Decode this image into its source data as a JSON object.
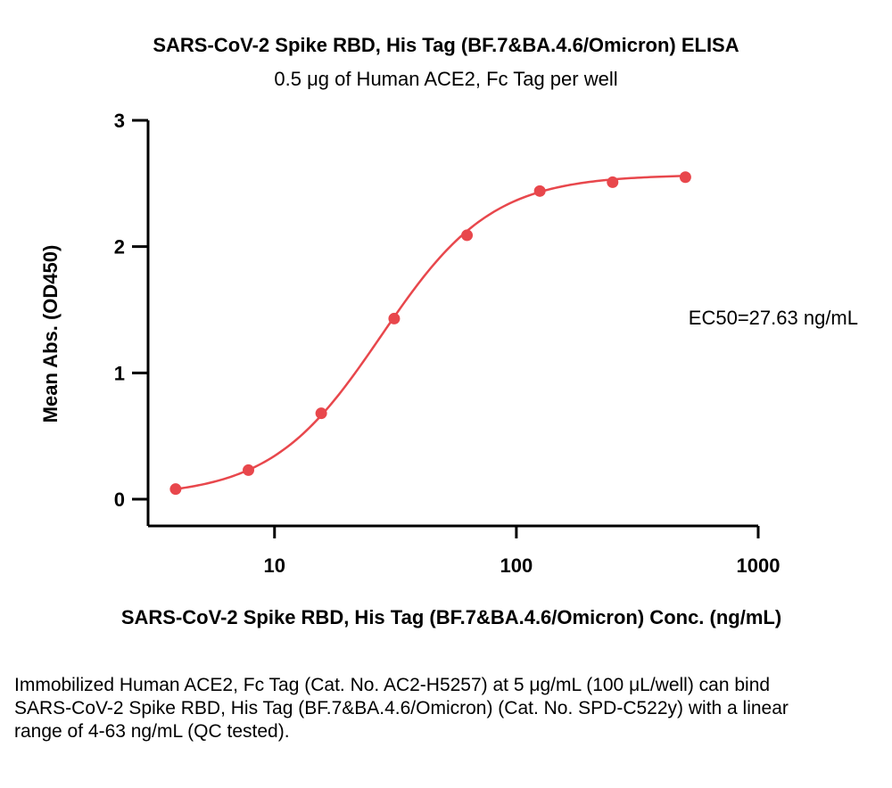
{
  "chart_data": {
    "type": "scatter",
    "title": "SARS-CoV-2 Spike RBD, His Tag (BF.7&BA.4.6/Omicron) ELISA",
    "subtitle": "0.5 μg of Human ACE2, Fc Tag per well",
    "xlabel": "SARS-CoV-2 Spike RBD, His Tag (BF.7&BA.4.6/Omicron) Conc. (ng/mL)",
    "ylabel": "Mean Abs. (OD450)",
    "xscale": "log",
    "xlim": [
      3,
      1000
    ],
    "ylim": [
      0,
      3
    ],
    "xticks": [
      10,
      100,
      1000
    ],
    "xtick_labels": [
      "10",
      "100",
      "1000"
    ],
    "yticks": [
      0,
      1,
      2,
      3
    ],
    "ytick_labels": [
      "0",
      "1",
      "2",
      "3"
    ],
    "series": [
      {
        "color": "#e8474c",
        "x": [
          3.9,
          7.8,
          15.6,
          31.25,
          62.5,
          125,
          250,
          500
        ],
        "y": [
          0.08,
          0.23,
          0.68,
          1.43,
          2.09,
          2.44,
          2.51,
          2.55
        ]
      }
    ],
    "curve_fit": {
      "type": "4PL",
      "bottom": 0.02,
      "top": 2.57,
      "ec50": 27.63,
      "hill": 1.9
    },
    "annotation": "EC50=27.63 ng/mL",
    "grid": false
  },
  "caption": "Immobilized Human ACE2, Fc Tag (Cat. No. AC2-H5257) at 5 μg/mL (100 μL/well) can bind SARS-CoV-2 Spike RBD, His Tag (BF.7&BA.4.6/Omicron) (Cat. No. SPD-C522y) with a linear range of 4-63 ng/mL (QC tested)."
}
